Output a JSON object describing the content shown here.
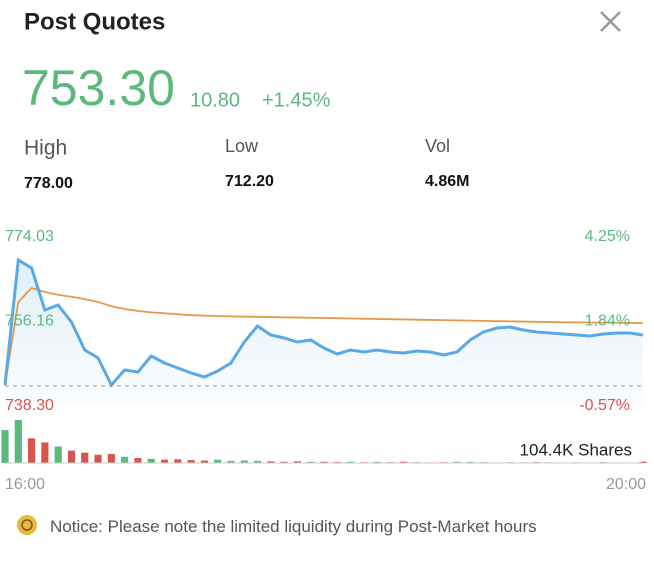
{
  "header": {
    "title": "Post Quotes"
  },
  "quote": {
    "price": "753.30",
    "change": "10.80",
    "change_pct": "+1.45%"
  },
  "stats": [
    {
      "label": "High",
      "value": "778.00"
    },
    {
      "label": "Low",
      "value": "712.20"
    },
    {
      "label": "Vol",
      "value": "4.86M"
    }
  ],
  "chart": {
    "type": "line",
    "categories": [
      "16:00",
      null,
      null,
      null,
      null,
      null,
      null,
      null,
      null,
      null,
      null,
      null,
      null,
      null,
      null,
      null,
      null,
      null,
      null,
      null,
      null,
      null,
      null,
      null,
      null,
      null,
      null,
      null,
      null,
      null,
      null,
      null,
      null,
      null,
      null,
      null,
      null,
      null,
      null,
      null,
      null,
      null,
      null,
      null,
      null,
      null,
      null,
      null,
      "20:00"
    ],
    "series": [
      {
        "color": "#5aa9e6",
        "values": [
          742.74,
          769.17,
          767.48,
          758.6,
          759.65,
          756.06,
          750.14,
          748.45,
          742.74,
          745.91,
          745.49,
          748.87,
          747.39,
          746.34,
          745.28,
          744.43,
          745.7,
          747.39,
          751.83,
          755.22,
          753.31,
          752.68,
          751.83,
          752.26,
          750.56,
          749.3,
          750.14,
          749.72,
          750.14,
          749.72,
          749.51,
          749.93,
          749.72,
          749.09,
          749.72,
          752.26,
          753.95,
          754.79,
          755.0,
          754.37,
          753.95,
          753.74,
          753.52,
          753.31,
          753.1,
          753.52,
          753.74,
          753.74,
          753.3
        ]
      },
      {
        "color": "#e39a48",
        "values": [
          742.74,
          760.3,
          763.25,
          762.4,
          761.8,
          761.4,
          760.9,
          760.3,
          759.4,
          758.8,
          758.4,
          758.1,
          757.9,
          757.7,
          757.5,
          757.4,
          757.3,
          757.25,
          757.2,
          757.15,
          757.1,
          757.05,
          757.0,
          756.95,
          756.9,
          756.85,
          756.8,
          756.75,
          756.7,
          756.65,
          756.6,
          756.55,
          756.5,
          756.45,
          756.4,
          756.35,
          756.3,
          756.25,
          756.2,
          756.15,
          756.1,
          756.05,
          756.0,
          755.98,
          755.95,
          755.92,
          755.9,
          755.87,
          755.85
        ]
      }
    ],
    "ylim": [
      738.3,
      774.03
    ],
    "yticks": [
      774.03,
      756.16,
      {
        "value": 738.3,
        "label": "738.30"
      }
    ],
    "y2lim": [
      -0.57,
      4.25
    ],
    "y2ticks": [
      {
        "value": 4.25,
        "label": "4.25%"
      },
      {
        "value": 1.84,
        "label": "1.84%"
      },
      {
        "value": -0.57,
        "label": "-0.57%"
      }
    ],
    "volume": {
      "values": [
        80000,
        104400,
        60000,
        50000,
        40000,
        30000,
        25000,
        20000,
        22000,
        15000,
        12000,
        10000,
        8000,
        9000,
        7000,
        6000,
        8000,
        5000,
        6000,
        5000,
        4000,
        3000,
        4000,
        3000,
        3000,
        2500,
        3000,
        2000,
        2500,
        2000,
        3000,
        2000,
        1500,
        2000,
        3000,
        2500,
        2000,
        1500,
        2000,
        1500,
        2000,
        1500,
        1000,
        1500,
        1000,
        2000,
        1500,
        1000,
        3000
      ],
      "max": {
        "value": 104400,
        "label": "104.4K Shares"
      }
    }
  },
  "notice": {
    "text": "Notice: Please note the limited liquidity during Post-Market hours"
  }
}
